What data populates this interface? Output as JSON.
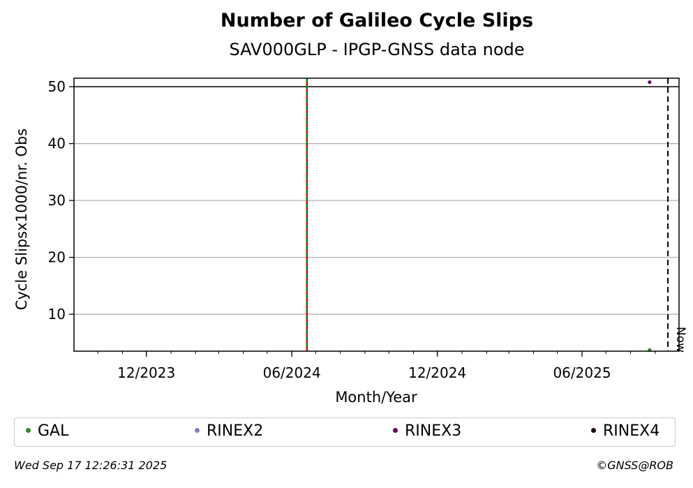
{
  "chart_data": {
    "type": "scatter",
    "title": "Number of Galileo Cycle Slips",
    "subtitle": "SAV000GLP - IPGP-GNSS data node",
    "xlabel": "Month/Year",
    "ylabel": "Cycle Slipsx1000/nr. Obs",
    "x_ticks": [
      "12/2023",
      "06/2024",
      "12/2024",
      "06/2025"
    ],
    "y_ticks": [
      10,
      20,
      30,
      40,
      50
    ],
    "ylim": [
      3.5,
      51.5
    ],
    "xlim": [
      "2023-09-01",
      "2025-10-01"
    ],
    "grid": "horizontal",
    "threshold_line": 50,
    "event_line_date": "2024-06-20",
    "now_date": "2025-09-17",
    "now_label": "Now",
    "legend_position": "bottom",
    "series": [
      {
        "name": "GAL",
        "color": "#2e8b2e",
        "points": [
          {
            "x": "2025-08-25",
            "y": 3.7
          }
        ]
      },
      {
        "name": "RINEX2",
        "color": "#8080c0",
        "points": []
      },
      {
        "name": "RINEX3",
        "color": "#660066",
        "points": [
          {
            "x": "2025-08-25",
            "y": 50.8
          }
        ]
      },
      {
        "name": "RINEX4",
        "color": "#1a0010",
        "points": []
      }
    ]
  },
  "footer": {
    "timestamp": "Wed Sep 17 12:26:31 2025",
    "credit": "©GNSS@ROB"
  }
}
